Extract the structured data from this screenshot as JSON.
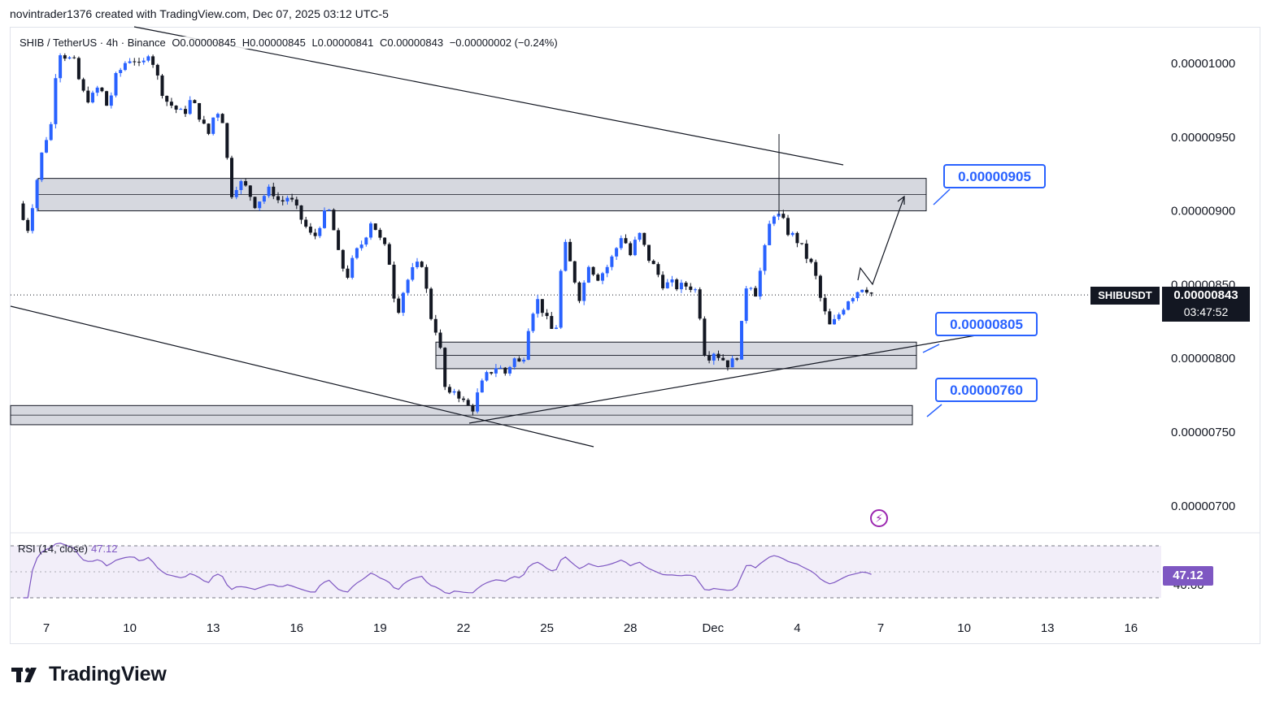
{
  "header": "novintrader1376 created with TradingView.com, Dec 07, 2025 03:12 UTC-5",
  "legend": {
    "symbol": "SHIB / TetherUS · 4h · Binance",
    "open": "O0.00000845",
    "high": "H0.00000845",
    "low": "L0.00000841",
    "close": "C0.00000843",
    "change": "−0.00000002 (−0.24%)"
  },
  "price_scale": {
    "ticks": [
      "0.00001000",
      "0.00000950",
      "0.00000900",
      "0.00000850",
      "0.00000800",
      "0.00000750",
      "0.00000700"
    ],
    "symbol_badge": "SHIBUSDT",
    "last_price": "0.00000843",
    "countdown": "03:47:52"
  },
  "callouts": [
    "0.00000905",
    "0.00000805",
    "0.00000760"
  ],
  "rsi": {
    "label": "RSI (14, close)",
    "value": "47.12",
    "scale_tick": "40.00"
  },
  "footer": {
    "brand": "TradingView"
  },
  "colors": {
    "up": "#2962ff",
    "down": "#131722",
    "zone_fill": "#d1d4dc",
    "rsi_line": "#7e57c2",
    "rsi_band": "#ede7f6",
    "callout": "#2962ff"
  },
  "chart_data": {
    "type": "candlestick",
    "title": "SHIB / TetherUS · 4h · Binance",
    "x_ticks": [
      "7",
      "10",
      "13",
      "16",
      "19",
      "22",
      "25",
      "28",
      "Dec",
      "4",
      "7",
      "10",
      "13",
      "16"
    ],
    "ylim": [
      6.7e-06,
      1.035e-05
    ],
    "y_ticks": [
      1e-05,
      9.5e-06,
      9e-06,
      8.5e-06,
      8e-06,
      7.5e-06,
      7e-06
    ],
    "last_price": 8.43e-06,
    "close_path": [
      [
        6.0,
        9.05e-06
      ],
      [
        6.3,
        8.85e-06
      ],
      [
        6.6,
        9.15e-06
      ],
      [
        6.9,
        9.45e-06
      ],
      [
        7.2,
        9.6e-06
      ],
      [
        7.4,
        1.01e-05
      ],
      [
        7.7,
        1.005e-05
      ],
      [
        8.0,
        1e-05
      ],
      [
        8.3,
        9.8e-06
      ],
      [
        8.6,
        9.75e-06
      ],
      [
        8.9,
        9.85e-06
      ],
      [
        9.2,
        9.7e-06
      ],
      [
        9.5,
        9.9e-06
      ],
      [
        9.8,
        1e-05
      ],
      [
        10.1,
        1.005e-05
      ],
      [
        10.4,
        9.95e-06
      ],
      [
        10.7,
        1.01e-05
      ],
      [
        11.0,
        9.9e-06
      ],
      [
        11.3,
        9.75e-06
      ],
      [
        11.6,
        9.7e-06
      ],
      [
        11.9,
        9.65e-06
      ],
      [
        12.2,
        9.75e-06
      ],
      [
        12.5,
        9.65e-06
      ],
      [
        12.8,
        9.5e-06
      ],
      [
        13.1,
        9.7e-06
      ],
      [
        13.4,
        9.6e-06
      ],
      [
        13.6,
        9.1e-06
      ],
      [
        13.9,
        9.2e-06
      ],
      [
        14.2,
        9.15e-06
      ],
      [
        14.5,
        9.05e-06
      ],
      [
        14.8,
        9.1e-06
      ],
      [
        15.1,
        9.15e-06
      ],
      [
        15.4,
        9.05e-06
      ],
      [
        15.7,
        9.1e-06
      ],
      [
        16.0,
        9e-06
      ],
      [
        16.3,
        8.9e-06
      ],
      [
        16.6,
        8.8e-06
      ],
      [
        16.9,
        8.95e-06
      ],
      [
        17.2,
        9e-06
      ],
      [
        17.5,
        8.7e-06
      ],
      [
        17.8,
        8.55e-06
      ],
      [
        18.1,
        8.7e-06
      ],
      [
        18.4,
        8.8e-06
      ],
      [
        18.7,
        8.95e-06
      ],
      [
        19.0,
        8.8e-06
      ],
      [
        19.3,
        8.7e-06
      ],
      [
        19.6,
        8.3e-06
      ],
      [
        19.9,
        8.5e-06
      ],
      [
        20.2,
        8.6e-06
      ],
      [
        20.5,
        8.65e-06
      ],
      [
        20.8,
        8.3e-06
      ],
      [
        21.1,
        8.15e-06
      ],
      [
        21.4,
        7.7e-06
      ],
      [
        21.7,
        7.8e-06
      ],
      [
        22.0,
        7.7e-06
      ],
      [
        22.3,
        7.65e-06
      ],
      [
        22.6,
        7.8e-06
      ],
      [
        22.9,
        7.9e-06
      ],
      [
        23.2,
        7.95e-06
      ],
      [
        23.5,
        7.9e-06
      ],
      [
        23.8,
        8e-06
      ],
      [
        24.1,
        7.95e-06
      ],
      [
        24.4,
        8.3e-06
      ],
      [
        24.7,
        8.4e-06
      ],
      [
        25.0,
        8.25e-06
      ],
      [
        25.3,
        8.15e-06
      ],
      [
        25.6,
        8.8e-06
      ],
      [
        25.9,
        8.6e-06
      ],
      [
        26.2,
        8.4e-06
      ],
      [
        26.5,
        8.65e-06
      ],
      [
        26.8,
        8.55e-06
      ],
      [
        27.1,
        8.6e-06
      ],
      [
        27.4,
        8.7e-06
      ],
      [
        27.7,
        8.85e-06
      ],
      [
        28.0,
        8.7e-06
      ],
      [
        28.3,
        8.85e-06
      ],
      [
        28.6,
        8.7e-06
      ],
      [
        28.9,
        8.6e-06
      ],
      [
        29.2,
        8.5e-06
      ],
      [
        29.5,
        8.5e-06
      ],
      [
        29.8,
        8.48e-06
      ],
      [
        30.1,
        8.5e-06
      ],
      [
        30.4,
        8.45e-06
      ],
      [
        30.7,
        8e-06
      ],
      [
        31.0,
        8.05e-06
      ],
      [
        31.3,
        8e-06
      ],
      [
        31.6,
        7.95e-06
      ],
      [
        31.9,
        8.05e-06
      ],
      [
        32.2,
        8.55e-06
      ],
      [
        32.5,
        8.45e-06
      ],
      [
        32.8,
        8.7e-06
      ],
      [
        33.1,
        9e-06
      ],
      [
        33.4,
        8.95e-06
      ],
      [
        33.7,
        8.85e-06
      ],
      [
        34.0,
        8.8e-06
      ],
      [
        34.3,
        8.7e-06
      ],
      [
        34.6,
        8.6e-06
      ],
      [
        34.9,
        8.35e-06
      ],
      [
        35.2,
        8.2e-06
      ],
      [
        35.5,
        8.3e-06
      ],
      [
        35.8,
        8.4e-06
      ],
      [
        36.1,
        8.45e-06
      ],
      [
        36.4,
        8.5e-06
      ],
      [
        36.7,
        8.43e-06
      ]
    ],
    "resistance_zone": [
      9e-06,
      9.22e-06
    ],
    "support_zones": [
      [
        7.93e-06,
        8.11e-06
      ],
      [
        7.55e-06,
        7.68e-06
      ]
    ],
    "target_levels": [
      9.05e-06,
      8.05e-06,
      7.6e-06
    ],
    "rsi": {
      "value": 47.12,
      "band": [
        30,
        70
      ]
    }
  }
}
